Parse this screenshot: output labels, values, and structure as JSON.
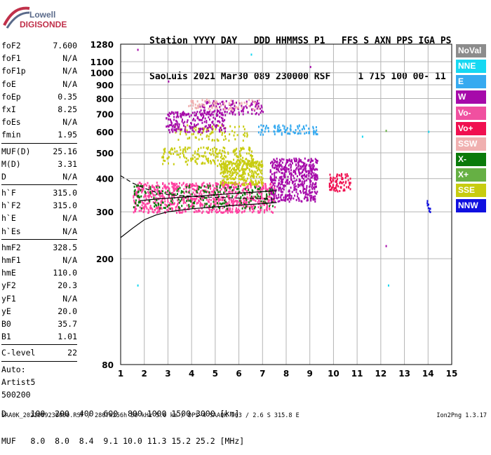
{
  "logo": {
    "line1": "Lowell",
    "line2": "DIGISONDE"
  },
  "header": {
    "line1": "Station YYYY DAY   DDD HHMMSS P1   FFS S AXN PPS IGA PS",
    "line2": "SaoLuis 2021 Mar30 089 230000 RSF     1 715 100 00- 11"
  },
  "params": {
    "group1": [
      {
        "k": "foF2",
        "v": "7.600"
      },
      {
        "k": "foF1",
        "v": "N/A"
      },
      {
        "k": "foF1p",
        "v": "N/A"
      },
      {
        "k": "foE",
        "v": "N/A"
      },
      {
        "k": "foEp",
        "v": "0.35"
      },
      {
        "k": "fxI",
        "v": "8.25"
      },
      {
        "k": "foEs",
        "v": "N/A"
      },
      {
        "k": "fmin",
        "v": "1.95"
      }
    ],
    "group2": [
      {
        "k": "MUF(D)",
        "v": "25.16"
      },
      {
        "k": "M(D)",
        "v": "3.31"
      },
      {
        "k": "D",
        "v": "N/A"
      }
    ],
    "group3": [
      {
        "k": "h`F",
        "v": "315.0"
      },
      {
        "k": "h`F2",
        "v": "315.0"
      },
      {
        "k": "h`E",
        "v": "N/A"
      },
      {
        "k": "h`Es",
        "v": "N/A"
      }
    ],
    "group4": [
      {
        "k": "hmF2",
        "v": "328.5"
      },
      {
        "k": "hmF1",
        "v": "N/A"
      },
      {
        "k": "hmE",
        "v": "110.0"
      },
      {
        "k": "yF2",
        "v": "20.3"
      },
      {
        "k": "yF1",
        "v": "N/A"
      },
      {
        "k": "yE",
        "v": "20.0"
      },
      {
        "k": "B0",
        "v": "35.7"
      },
      {
        "k": "B1",
        "v": "1.01"
      }
    ],
    "group5": [
      {
        "k": "C-level",
        "v": "22"
      }
    ],
    "auto_label": "Auto:",
    "artist": "Artist5",
    "artist_code": "500200"
  },
  "legend": [
    {
      "label": "NoVal",
      "color": "#8c8c8c"
    },
    {
      "label": "NNE",
      "color": "#16d8f2"
    },
    {
      "label": "E",
      "color": "#36aaf0"
    },
    {
      "label": "W",
      "color": "#a60aaa"
    },
    {
      "label": "Vo-",
      "color": "#f050a0"
    },
    {
      "label": "Vo+",
      "color": "#f01050"
    },
    {
      "label": "SSW",
      "color": "#f0b0b0"
    },
    {
      "label": "X-",
      "color": "#0a7a0a"
    },
    {
      "label": "X+",
      "color": "#66b044"
    },
    {
      "label": "SSE",
      "color": "#c8cc10"
    },
    {
      "label": "NNW",
      "color": "#1010e0"
    }
  ],
  "chart_data": {
    "type": "scatter",
    "title": "",
    "xlabel": "",
    "ylabel": "",
    "xlim": [
      1,
      15
    ],
    "ylim": [
      80,
      1280
    ],
    "y_scale": "log",
    "xticks": [
      1,
      2,
      3,
      4,
      5,
      6,
      7,
      8,
      9,
      10,
      11,
      12,
      13,
      14,
      15
    ],
    "yticks": [
      80,
      200,
      300,
      400,
      500,
      600,
      700,
      800,
      900,
      1000,
      1100,
      1280
    ],
    "grid": true,
    "clusters": [
      {
        "color": "#ff40a0",
        "x0": 1.5,
        "x1": 7.5,
        "y0": 300,
        "y1": 390,
        "n": 900
      },
      {
        "color": "#c8cc10",
        "x0": 5.2,
        "x1": 7.0,
        "y0": 380,
        "y1": 470,
        "n": 300
      },
      {
        "color": "#c8cc10",
        "x0": 2.7,
        "x1": 6.6,
        "y0": 450,
        "y1": 530,
        "n": 220
      },
      {
        "color": "#c8cc10",
        "x0": 3.2,
        "x1": 6.4,
        "y0": 560,
        "y1": 640,
        "n": 90
      },
      {
        "color": "#a60aaa",
        "x0": 2.9,
        "x1": 5.4,
        "y0": 600,
        "y1": 720,
        "n": 220
      },
      {
        "color": "#a60aaa",
        "x0": 4.3,
        "x1": 7.0,
        "y0": 700,
        "y1": 790,
        "n": 130
      },
      {
        "color": "#f0b0b0",
        "x0": 3.8,
        "x1": 6.9,
        "y0": 730,
        "y1": 800,
        "n": 80
      },
      {
        "color": "#a60aaa",
        "x0": 7.3,
        "x1": 9.3,
        "y0": 330,
        "y1": 480,
        "n": 500
      },
      {
        "color": "#0a7a0a",
        "x0": 1.5,
        "x1": 7.5,
        "y0": 310,
        "y1": 380,
        "n": 220
      },
      {
        "color": "#36aaf0",
        "x0": 6.8,
        "x1": 9.3,
        "y0": 590,
        "y1": 640,
        "n": 90
      },
      {
        "color": "#f01050",
        "x0": 9.8,
        "x1": 10.7,
        "y0": 360,
        "y1": 420,
        "n": 90
      },
      {
        "color": "#1010e0",
        "x0": 13.9,
        "x1": 14.1,
        "y0": 300,
        "y1": 335,
        "n": 10
      }
    ],
    "outliers": [
      {
        "x": 1.7,
        "y": 1230,
        "color": "#a60aaa"
      },
      {
        "x": 6.5,
        "y": 1180,
        "color": "#16d8f2"
      },
      {
        "x": 3.0,
        "y": 935,
        "color": "#a60aaa"
      },
      {
        "x": 9.0,
        "y": 1060,
        "color": "#a60aaa"
      },
      {
        "x": 1.7,
        "y": 160,
        "color": "#16d8f2"
      },
      {
        "x": 12.2,
        "y": 225,
        "color": "#a60aaa"
      },
      {
        "x": 12.3,
        "y": 160,
        "color": "#16d8f2"
      },
      {
        "x": 14.0,
        "y": 605,
        "color": "#16d8f2"
      },
      {
        "x": 12.2,
        "y": 610,
        "color": "#66b044"
      },
      {
        "x": 11.2,
        "y": 580,
        "color": "#16d8f2"
      }
    ],
    "curves": [
      {
        "name": "",
        "style": "solid",
        "points": [
          [
            1,
            240
          ],
          [
            1.5,
            260
          ],
          [
            2,
            280
          ],
          [
            2.5,
            292
          ],
          [
            3,
            300
          ],
          [
            4,
            308
          ],
          [
            5,
            313
          ],
          [
            6,
            318
          ],
          [
            7,
            322
          ],
          [
            7.6,
            325
          ]
        ]
      },
      {
        "name": "",
        "style": "solid",
        "points": [
          [
            1.8,
            330
          ],
          [
            2.5,
            335
          ],
          [
            3.5,
            340
          ],
          [
            4.5,
            345
          ],
          [
            5.5,
            350
          ],
          [
            6.5,
            355
          ],
          [
            7.6,
            360
          ]
        ]
      },
      {
        "name": "",
        "style": "dashed",
        "points": [
          [
            1,
            410
          ],
          [
            1.5,
            385
          ],
          [
            2,
            368
          ],
          [
            2.5,
            355
          ],
          [
            3,
            348
          ],
          [
            4,
            343
          ],
          [
            5,
            340
          ],
          [
            6,
            338
          ],
          [
            7.5,
            335
          ]
        ]
      }
    ]
  },
  "bottom": {
    "row1": "D     100  200  400  600  800 1000 1500 3000 [km]",
    "row2": "MUF   8.0  8.0  8.4  9.1 10.0 11.3 15.2 25.2 [MHz]"
  },
  "footer": {
    "text": "SAA0K_2021089230000.RSF / 280fx256h 50 kHz 5.0 km / DPS-4 SAA0K 903 / 2.6 S 315.8 E",
    "version": "Ion2Png 1.3.17"
  }
}
